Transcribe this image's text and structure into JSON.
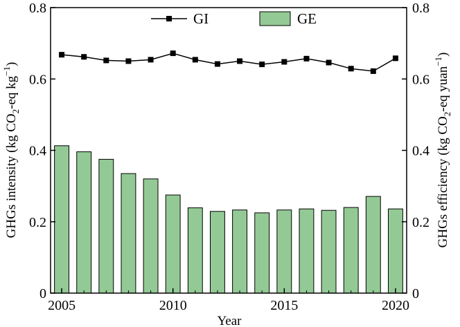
{
  "chart_data": {
    "type": "bar+line",
    "xlabel": "Year",
    "ylabel_left": {
      "main": "GHGs intensity (kg CO",
      "sub": "2",
      "mid": "-eq kg",
      "sup": "−1",
      "end": ")"
    },
    "ylabel_right": {
      "main": "GHGs efficiency (kg CO",
      "sub": "2",
      "mid": "-eq yuan",
      "sup": "−1",
      "end": ")"
    },
    "x": [
      2005,
      2006,
      2007,
      2008,
      2009,
      2010,
      2011,
      2012,
      2013,
      2014,
      2015,
      2016,
      2017,
      2018,
      2019,
      2020
    ],
    "xlim": [
      2004.5,
      2020.5
    ],
    "x_ticks": [
      "2005",
      "2010",
      "2015",
      "2020"
    ],
    "ylim": [
      0,
      0.8
    ],
    "y_ticks": [
      "0",
      "0.2",
      "0.4",
      "0.6",
      "0.8"
    ],
    "grid": false,
    "legend_position": "top",
    "series": [
      {
        "name": "GI",
        "type": "line",
        "marker": "square",
        "color": "#000000",
        "values": [
          0.668,
          0.662,
          0.652,
          0.65,
          0.654,
          0.672,
          0.654,
          0.642,
          0.65,
          0.641,
          0.648,
          0.657,
          0.646,
          0.629,
          0.622,
          0.658
        ]
      },
      {
        "name": "GE",
        "type": "bar",
        "color": "#93c995",
        "values": [
          0.413,
          0.396,
          0.375,
          0.335,
          0.32,
          0.275,
          0.239,
          0.229,
          0.233,
          0.225,
          0.233,
          0.236,
          0.232,
          0.24,
          0.271,
          0.236
        ]
      }
    ]
  }
}
